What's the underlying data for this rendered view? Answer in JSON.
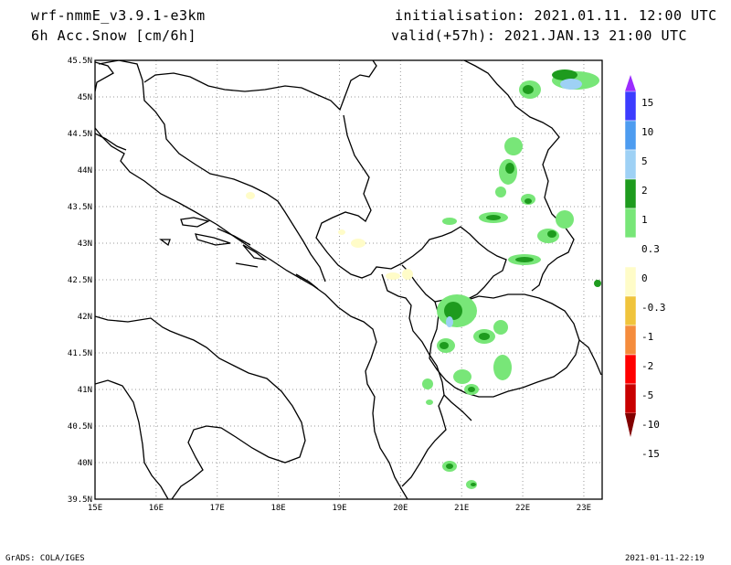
{
  "header": {
    "model": "wrf-nmmE_v3.9.1-e3km",
    "field": "6h Acc.Snow [cm/6h]",
    "initialisation": "initialisation: 2021.01.11.  12:00 UTC",
    "valid": "valid(+57h): 2021.JAN.13 21:00 UTC"
  },
  "footer": {
    "credit": "GrADS: COLA/IGES",
    "timestamp": "2021-01-11-22:19"
  },
  "map": {
    "lon_range": [
      15,
      23.3
    ],
    "lat_range": [
      39.5,
      45.5
    ],
    "lon_ticks": [
      "15E",
      "16E",
      "17E",
      "18E",
      "19E",
      "20E",
      "21E",
      "22E",
      "23E"
    ],
    "lat_ticks": [
      "45.5N",
      "45N",
      "44.5N",
      "44N",
      "43.5N",
      "43N",
      "42.5N",
      "42N",
      "41.5N",
      "41N",
      "40.5N",
      "40N",
      "39.5N"
    ],
    "grid": "dotted"
  },
  "legend": {
    "labels": [
      "15",
      "10",
      "5",
      "2",
      "1",
      "0.3",
      "0",
      "-0.3",
      "-1",
      "-2",
      "-5",
      "-10",
      "-15"
    ],
    "colors": [
      "#9b2cff",
      "#3c3cff",
      "#4d9cf0",
      "#9ed1f5",
      "#1e9b1e",
      "#78e678",
      "#ffffff",
      "#fffcc8",
      "#f0c43c",
      "#f58c3c",
      "#ff0000",
      "#c80000",
      "#820000"
    ]
  }
}
